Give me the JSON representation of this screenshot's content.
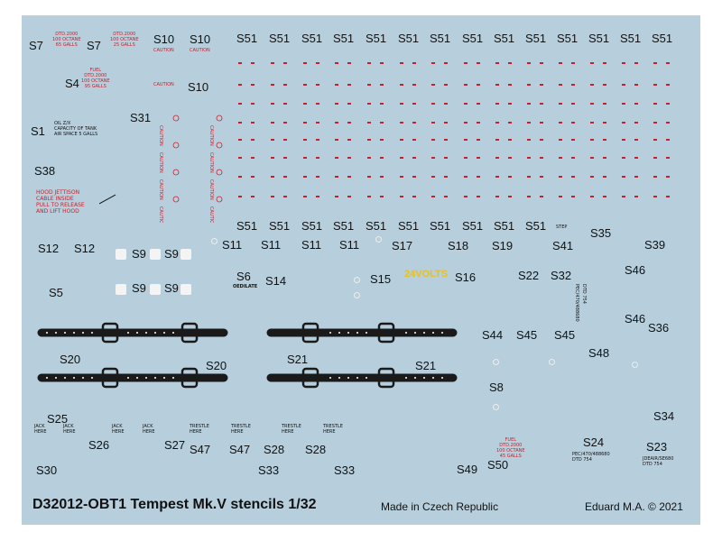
{
  "sheet": {
    "title": "D32012-OBT1 Tempest Mk.V stencils 1/32",
    "made_in": "Made in Czech Republic",
    "copyright": "Eduard M.A. © 2021",
    "background_color": "#b7cfdc",
    "stencil_red": "#c8202a",
    "stencil_yellow": "#e8c020"
  },
  "labels": {
    "s7a": "S7",
    "s7b": "S7",
    "s4": "S4",
    "s1": "S1",
    "s38": "S38",
    "s10a": "S10",
    "s10b": "S10",
    "s10c": "S10",
    "s31": "S31",
    "s51": "S51",
    "s12a": "S12",
    "s12b": "S12",
    "s9a": "S9",
    "s9b": "S9",
    "s9c": "S9",
    "s9d": "S9",
    "s5": "S5",
    "s11": "S11",
    "s6": "S6",
    "s14": "S14",
    "s15": "S15",
    "s16": "S16",
    "s17": "S17",
    "s18": "S18",
    "s19": "S19",
    "s22": "S22",
    "s32": "S32",
    "s41": "S41",
    "s35": "S35",
    "s39": "S39",
    "s46a": "S46",
    "s46b": "S46",
    "s36": "S36",
    "s44": "S44",
    "s45a": "S45",
    "s45b": "S45",
    "s48": "S48",
    "s8": "S8",
    "s34": "S34",
    "s20a": "S20",
    "s20b": "S20",
    "s21a": "S21",
    "s21b": "S21",
    "s25": "S25",
    "s26": "S26",
    "s27": "S27",
    "s47a": "S47",
    "s47b": "S47",
    "s28a": "S28",
    "s28b": "S28",
    "s30": "S30",
    "s33a": "S33",
    "s33b": "S33",
    "s49": "S49",
    "s50": "S50",
    "s24": "S24",
    "s23": "S23"
  },
  "stencils": {
    "fuel1": "DTD.2000\n100 OCTANE\n65 GALLS",
    "fuel2": "DTD.2000\n100 OCTANE\n25 GALLS",
    "fuel3": "FUEL\nDTD.2000\n100 OCTANE\n95 GALLS",
    "s1_text": "OIL Z/X\nCAPACITY OF TANK\nAIR SPACE 5 GALLS",
    "hood": "HOOD JETTISON\nCABLE INSIDE\nPULL TO RELEASE\nAND LIFT HOOD",
    "caution": "CAUTION",
    "volts": "24VOLTS",
    "oedilate": "OEDILATE",
    "step": "STEP",
    "jack_here": "JACK\nHERE",
    "trestle_here": "TRESTLE\nHERE",
    "fuel_bottom": "FUEL\nDTD.2000\n100 OCTANE\n45 GALLS",
    "s24_text": "PEC/470/488680\nDTD 754",
    "s23_text": "JDEAIR/SE680\nDTD 754"
  }
}
